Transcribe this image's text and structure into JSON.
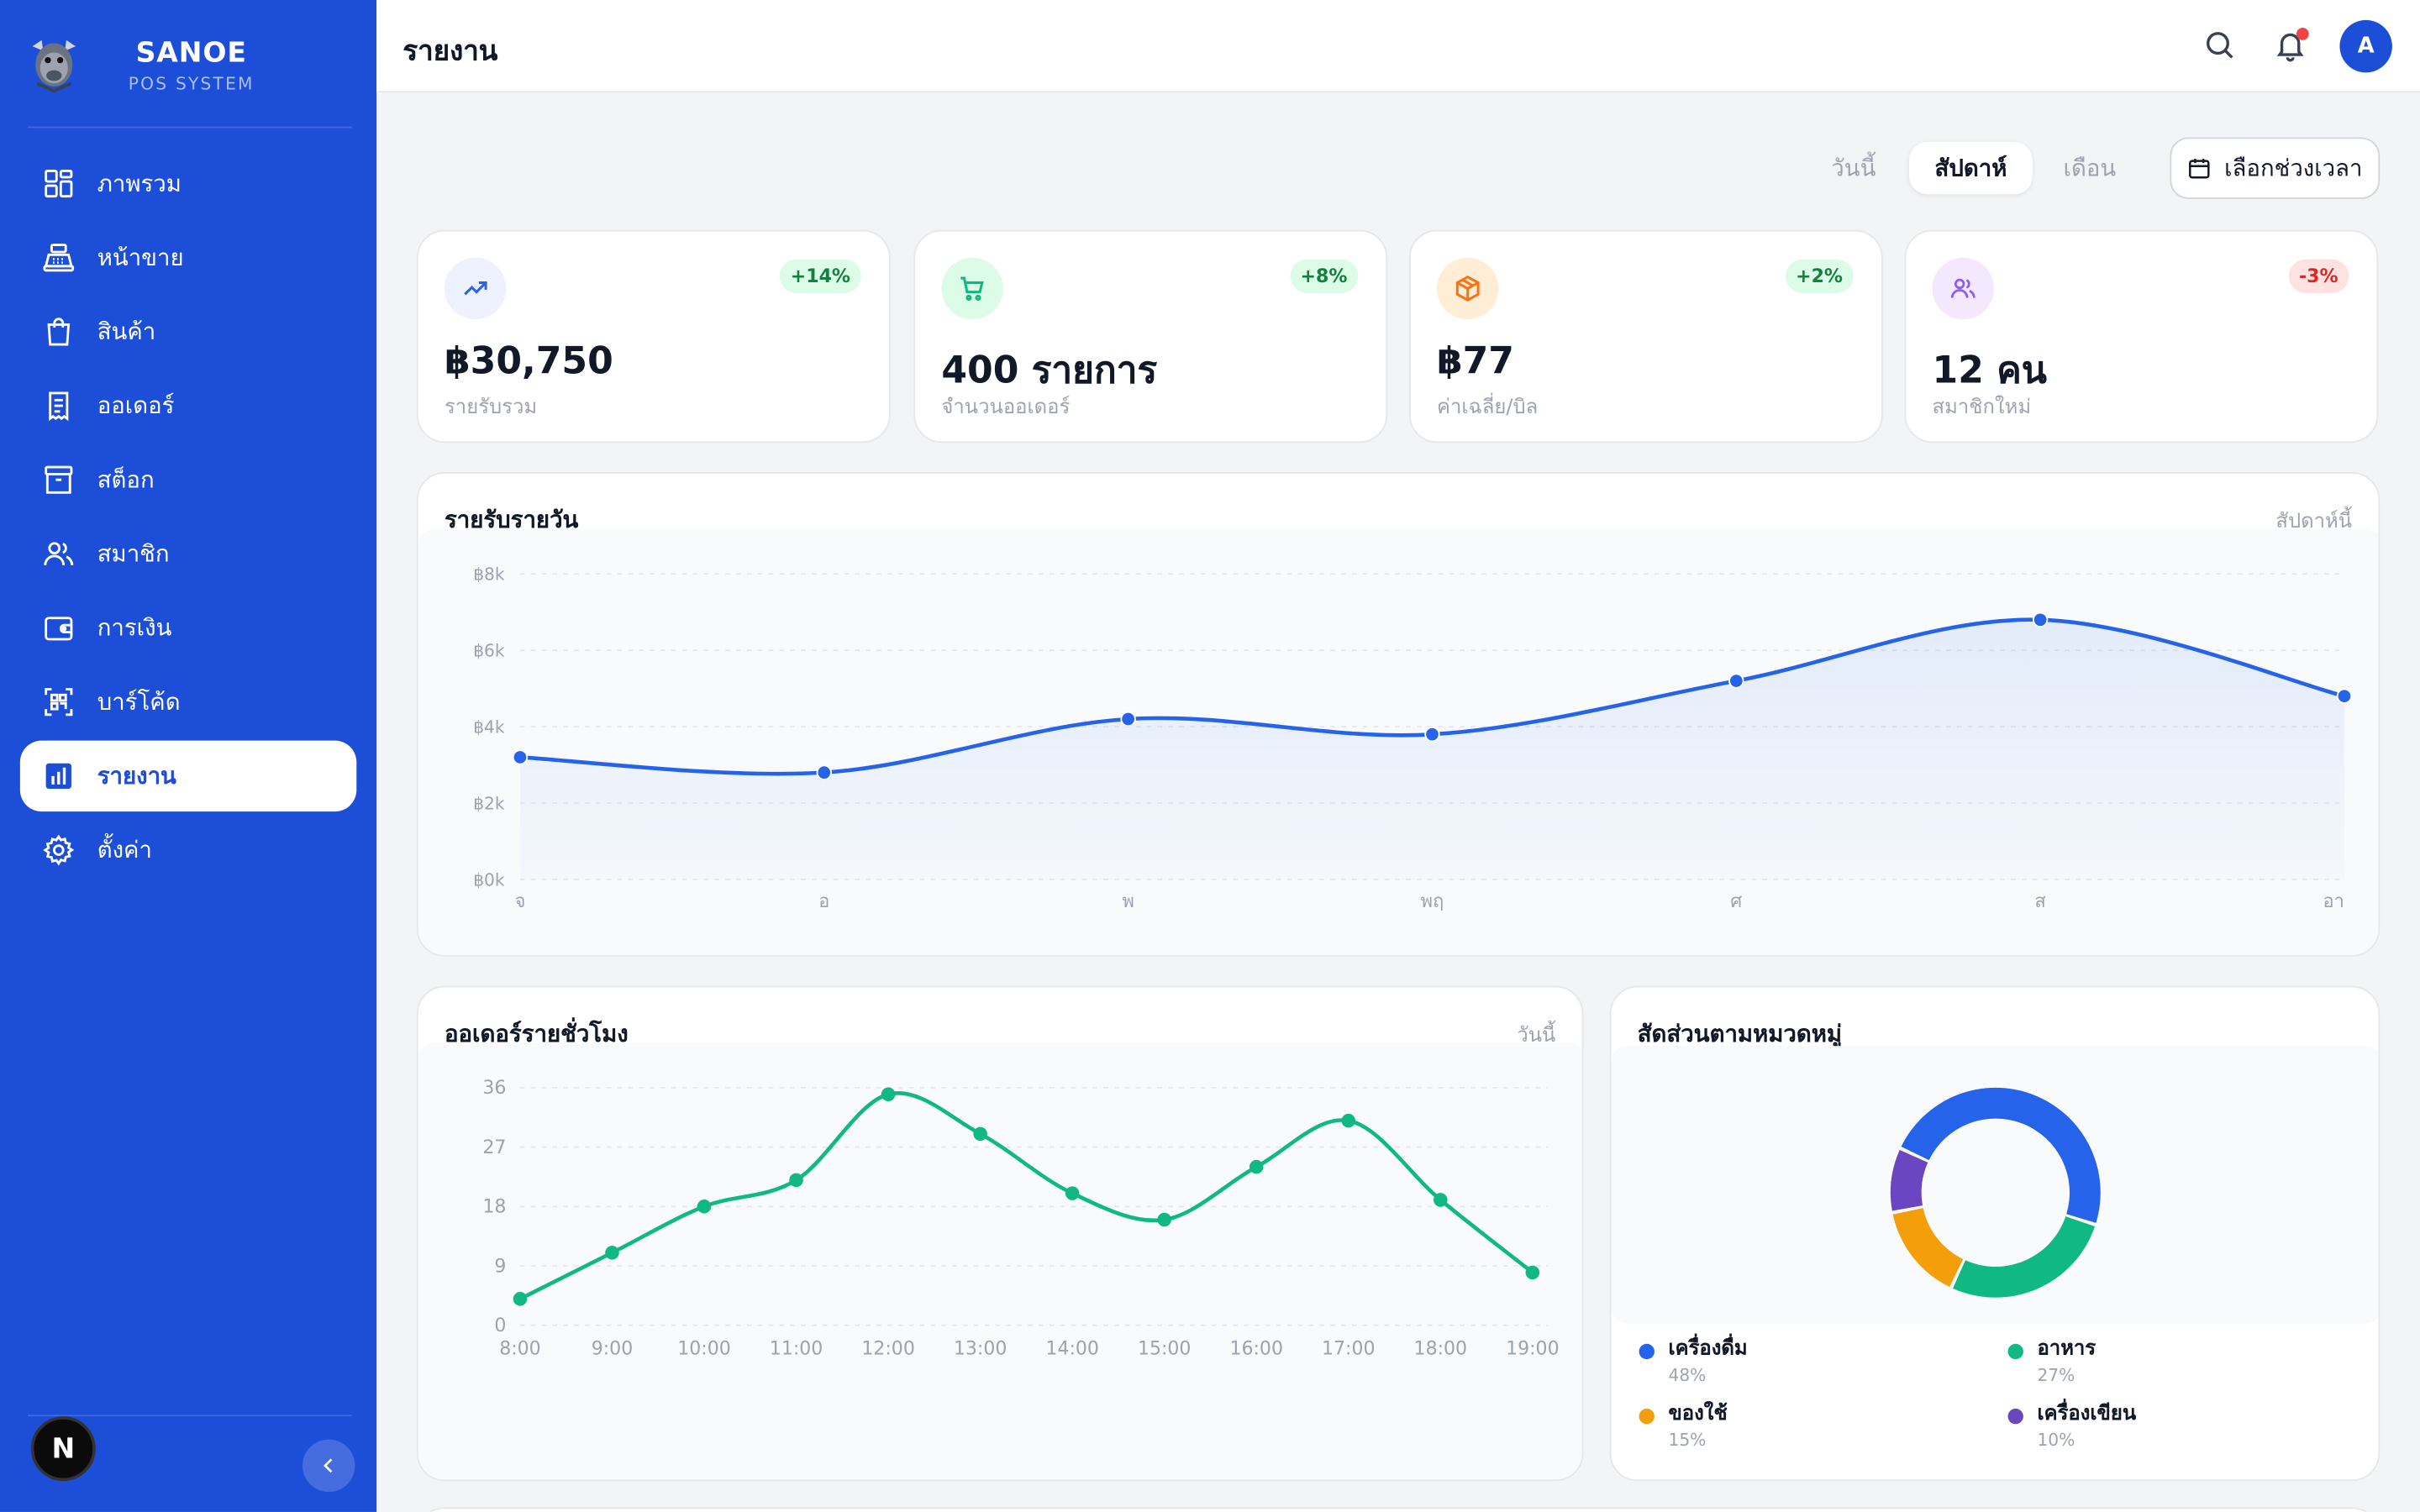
{
  "app": {
    "name": "SANOE",
    "subtitle": "POS SYSTEM"
  },
  "sidebar": {
    "items": [
      {
        "label": "ภาพรวม",
        "icon": "grid-icon",
        "active": false
      },
      {
        "label": "หน้าขาย",
        "icon": "cash-register-icon",
        "active": false
      },
      {
        "label": "สินค้า",
        "icon": "shopping-bag-icon",
        "active": false
      },
      {
        "label": "ออเดอร์",
        "icon": "receipt-icon",
        "active": false
      },
      {
        "label": "สต็อก",
        "icon": "archive-box-icon",
        "active": false
      },
      {
        "label": "สมาชิก",
        "icon": "users-icon",
        "active": false
      },
      {
        "label": "การเงิน",
        "icon": "wallet-icon",
        "active": false
      },
      {
        "label": "บาร์โค้ด",
        "icon": "barcode-scan-icon",
        "active": false
      },
      {
        "label": "รายงาน",
        "icon": "bar-chart-icon",
        "active": true
      },
      {
        "label": "ตั้งค่า",
        "icon": "gear-icon",
        "active": false
      }
    ],
    "footer_logo": "N"
  },
  "header": {
    "title": "รายงาน",
    "avatar_initial": "A"
  },
  "period_filter": {
    "options": [
      "วันนี้",
      "สัปดาห์",
      "เดือน"
    ],
    "selected": "สัปดาห์",
    "range_button": "เลือกช่วงเวลา"
  },
  "stats": [
    {
      "value": "฿30,750",
      "label": "รายรับรวม",
      "change": "+14%",
      "trend": "up",
      "icon": "trending-up-icon",
      "accent": "#2563eb"
    },
    {
      "value": "400 รายการ",
      "label": "จำนวนออเดอร์",
      "change": "+8%",
      "trend": "up",
      "icon": "shopping-cart-icon",
      "accent": "#10b981"
    },
    {
      "value": "฿77",
      "label": "ค่าเฉลี่ย/บิล",
      "change": "+2%",
      "trend": "up",
      "icon": "package-icon",
      "accent": "#f97316"
    },
    {
      "value": "12 คน",
      "label": "สมาชิกใหม่",
      "change": "-3%",
      "trend": "down",
      "icon": "users-icon",
      "accent": "#8b5cf6"
    }
  ],
  "daily_revenue": {
    "title": "รายรับรายวัน",
    "period": "สัปดาห์นี้"
  },
  "hourly_orders": {
    "title": "ออเดอร์รายชั่วโมง",
    "period": "วันนี้"
  },
  "category_share": {
    "title": "สัดส่วนตามหมวดหมู่"
  },
  "chart_data": [
    {
      "type": "area",
      "title": "รายรับรายวัน",
      "categories": [
        "จ",
        "อ",
        "พ",
        "พฤ",
        "ศ",
        "ส",
        "อา"
      ],
      "y_tick_labels": [
        "฿0k",
        "฿2k",
        "฿4k",
        "฿6k",
        "฿8k"
      ],
      "values": [
        3200,
        2800,
        4200,
        3800,
        5200,
        6800,
        4800
      ],
      "ylim": [
        0,
        8000
      ],
      "color": "#2563eb",
      "grid": true
    },
    {
      "type": "line",
      "title": "ออเดอร์รายชั่วโมง",
      "categories": [
        "8:00",
        "9:00",
        "10:00",
        "11:00",
        "12:00",
        "13:00",
        "14:00",
        "15:00",
        "16:00",
        "17:00",
        "18:00",
        "19:00"
      ],
      "values": [
        4,
        11,
        18,
        22,
        35,
        29,
        20,
        16,
        24,
        31,
        19,
        8
      ],
      "y_ticks": [
        0,
        9,
        18,
        27,
        36
      ],
      "ylim": [
        0,
        36
      ],
      "color": "#10b981",
      "grid": true
    },
    {
      "type": "pie",
      "title": "สัดส่วนตามหมวดหมู่",
      "donut": true,
      "slices": [
        {
          "name": "เครื่องดื่ม",
          "value": 48,
          "label": "48%",
          "color": "#2563eb"
        },
        {
          "name": "อาหาร",
          "value": 27,
          "label": "27%",
          "color": "#10b981"
        },
        {
          "name": "ของใช้",
          "value": 15,
          "label": "15%",
          "color": "#f59e0b"
        },
        {
          "name": "เครื่องเขียน",
          "value": 10,
          "label": "10%",
          "color": "#6b46c1"
        }
      ],
      "legend_position": "bottom"
    }
  ]
}
